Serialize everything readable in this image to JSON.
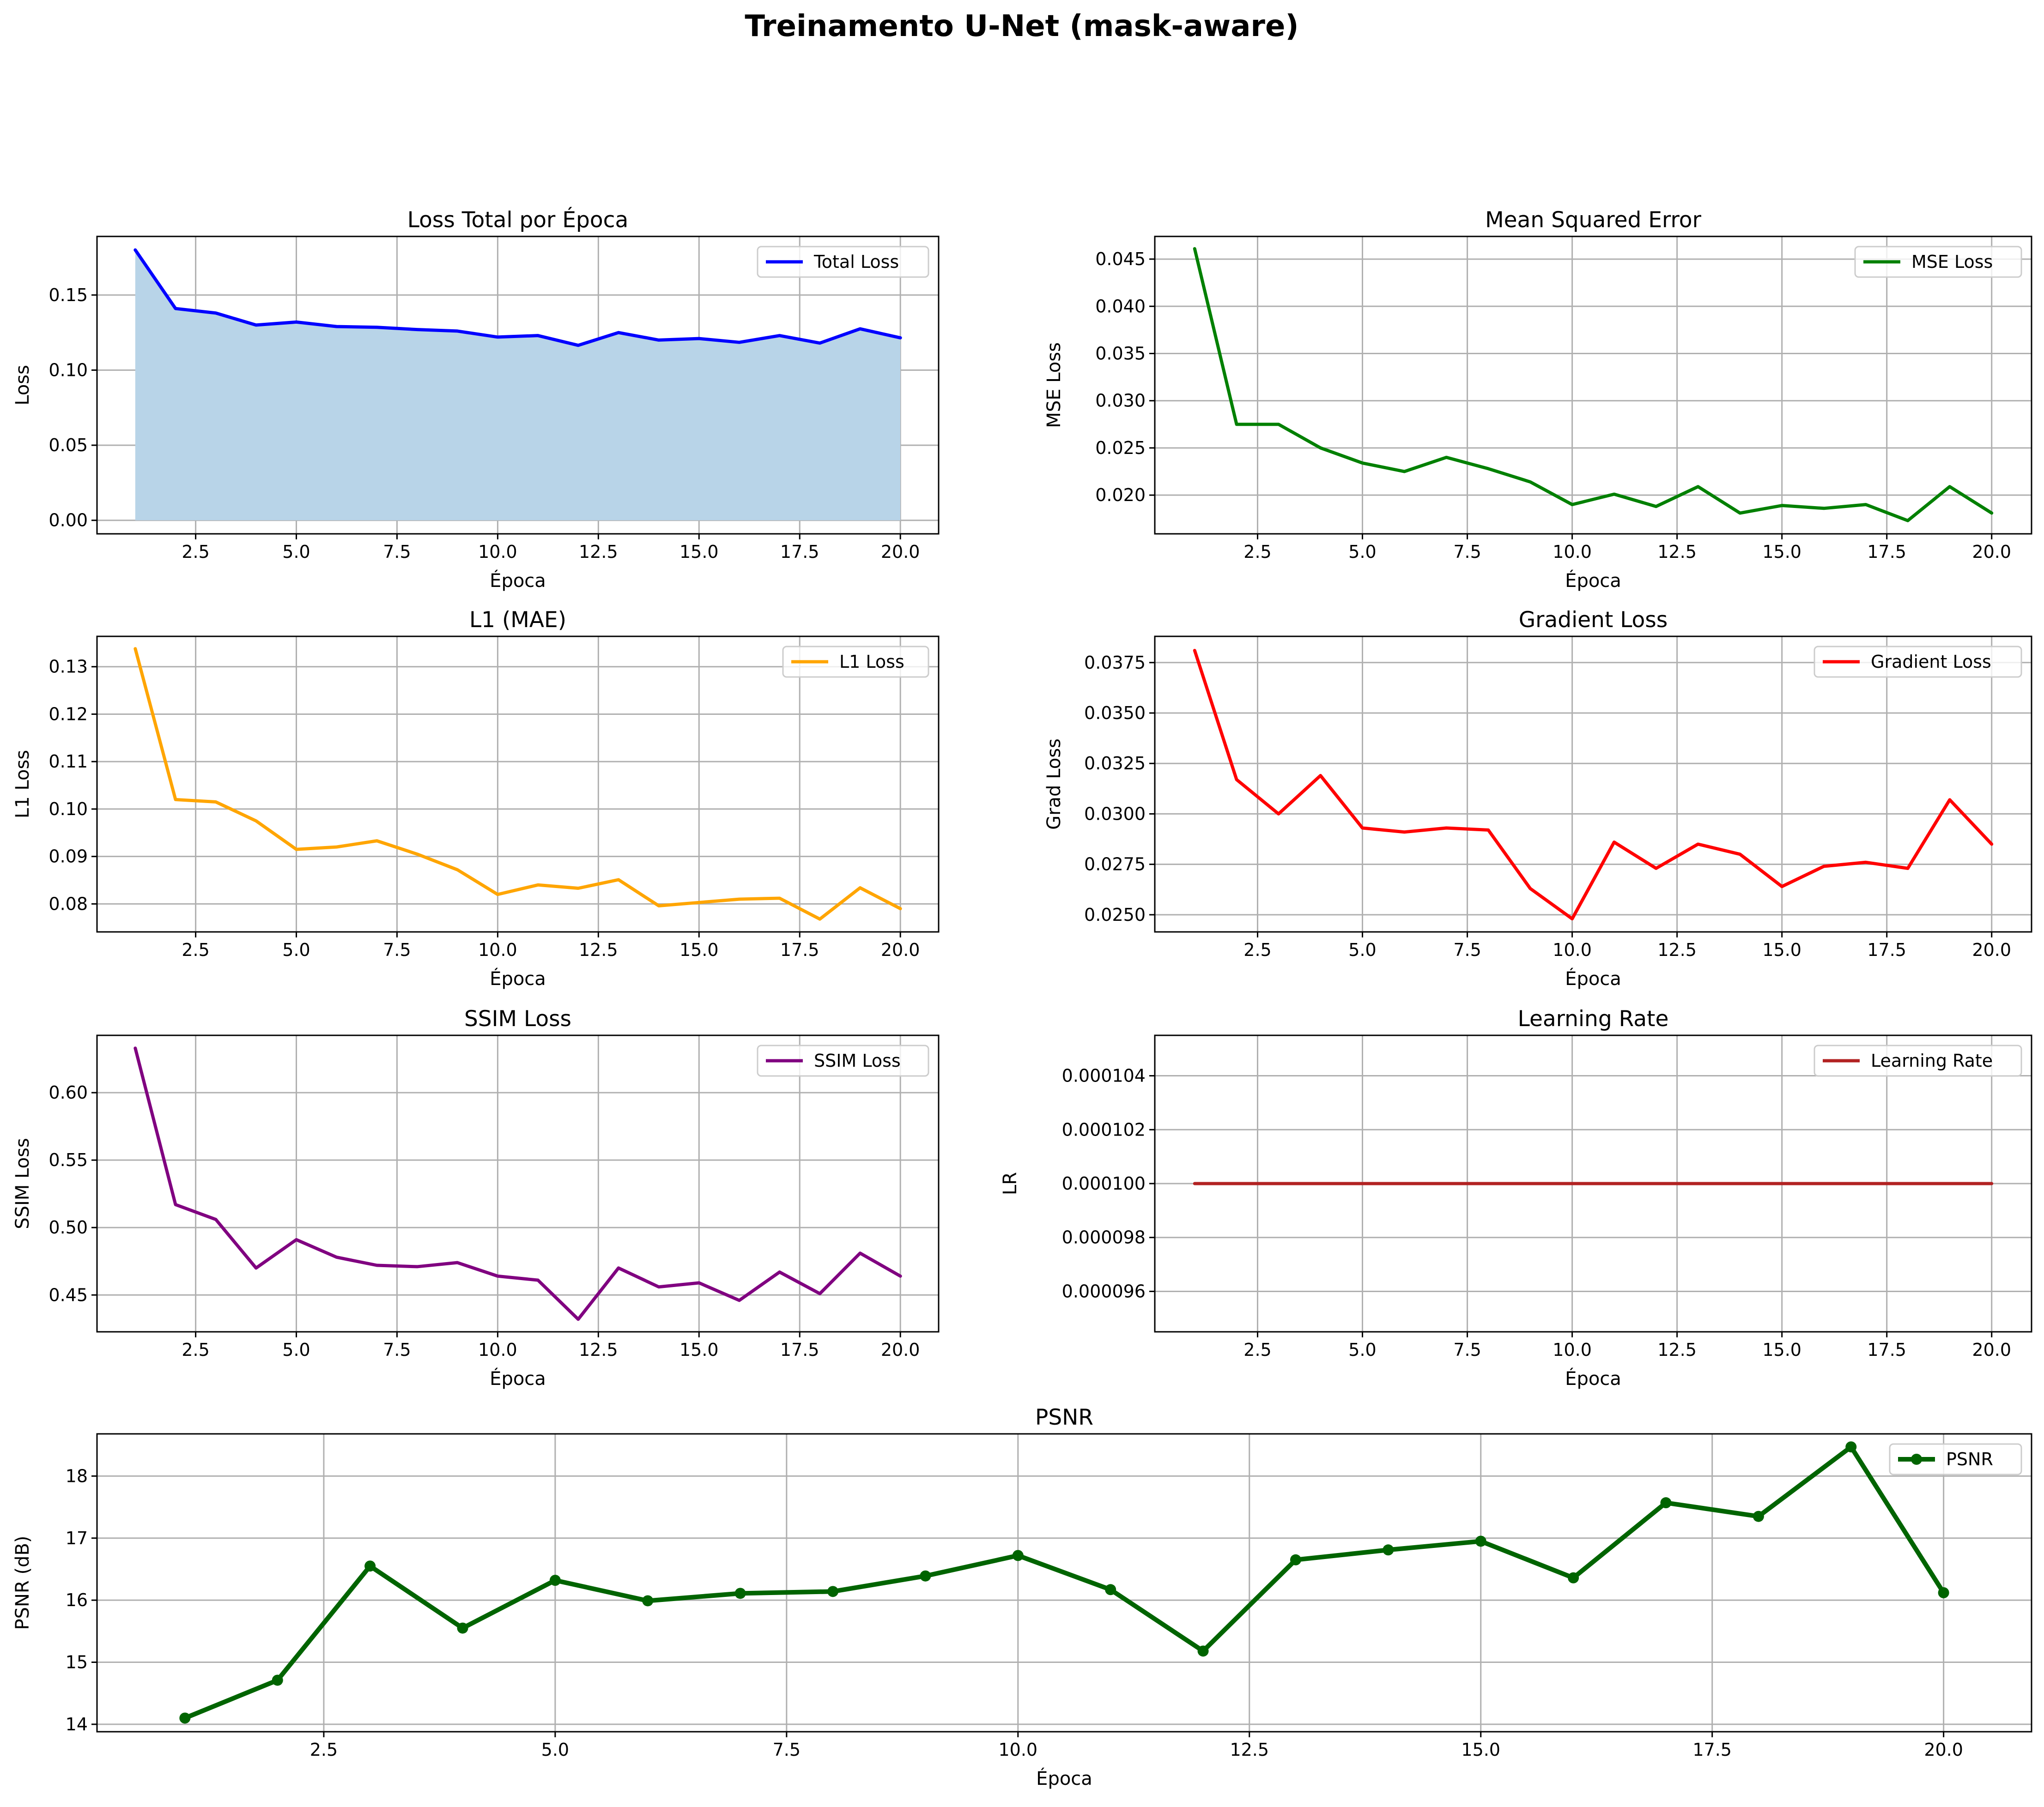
{
  "figure": {
    "suptitle": "Treinamento U-Net (mask-aware)"
  },
  "chart_data": [
    {
      "id": "total",
      "type": "area",
      "title": "Loss Total por Época",
      "xlabel": "Época",
      "ylabel": "Loss",
      "xlim": [
        0.05,
        20.95
      ],
      "ylim": [
        -0.009,
        0.189
      ],
      "xticks": [
        2.5,
        5.0,
        7.5,
        10.0,
        12.5,
        15.0,
        17.5,
        20.0
      ],
      "yticks": [
        0.0,
        0.05,
        0.1,
        0.15
      ],
      "ydec": 2,
      "grid": true,
      "fill_color": "#b8d4e8",
      "legend_loc": "upper right",
      "x": [
        1,
        2,
        3,
        4,
        5,
        6,
        7,
        8,
        9,
        10,
        11,
        12,
        13,
        14,
        15,
        16,
        17,
        18,
        19,
        20
      ],
      "series": [
        {
          "name": "Total Loss",
          "color": "#0000ff",
          "width": 7,
          "values": [
            0.18,
            0.141,
            0.138,
            0.13,
            0.132,
            0.129,
            0.1285,
            0.127,
            0.126,
            0.122,
            0.123,
            0.1165,
            0.125,
            0.12,
            0.121,
            0.1185,
            0.123,
            0.118,
            0.1275,
            0.1215
          ]
        }
      ]
    },
    {
      "id": "mse",
      "type": "line",
      "title": "Mean Squared Error",
      "xlabel": "Época",
      "ylabel": "MSE Loss",
      "xlim": [
        0.05,
        20.95
      ],
      "ylim": [
        0.0159,
        0.0474
      ],
      "xticks": [
        2.5,
        5.0,
        7.5,
        10.0,
        12.5,
        15.0,
        17.5,
        20.0
      ],
      "yticks": [
        0.02,
        0.025,
        0.03,
        0.035,
        0.04,
        0.045
      ],
      "ydec": 3,
      "grid": true,
      "legend_loc": "upper right",
      "x": [
        1,
        2,
        3,
        4,
        5,
        6,
        7,
        8,
        9,
        10,
        11,
        12,
        13,
        14,
        15,
        16,
        17,
        18,
        19,
        20
      ],
      "series": [
        {
          "name": "MSE Loss",
          "color": "#008000",
          "width": 7,
          "values": [
            0.0461,
            0.0275,
            0.0275,
            0.025,
            0.0234,
            0.0225,
            0.024,
            0.0228,
            0.0214,
            0.019,
            0.0201,
            0.0188,
            0.0209,
            0.0181,
            0.0189,
            0.0186,
            0.019,
            0.0173,
            0.0209,
            0.0181
          ]
        }
      ]
    },
    {
      "id": "l1",
      "type": "line",
      "title": "L1 (MAE)",
      "xlabel": "Época",
      "ylabel": "L1 Loss",
      "xlim": [
        0.05,
        20.95
      ],
      "ylim": [
        0.0741,
        0.1364
      ],
      "xticks": [
        2.5,
        5.0,
        7.5,
        10.0,
        12.5,
        15.0,
        17.5,
        20.0
      ],
      "yticks": [
        0.08,
        0.09,
        0.1,
        0.11,
        0.12,
        0.13
      ],
      "ydec": 2,
      "grid": true,
      "legend_loc": "upper right",
      "x": [
        1,
        2,
        3,
        4,
        5,
        6,
        7,
        8,
        9,
        10,
        11,
        12,
        13,
        14,
        15,
        16,
        17,
        18,
        19,
        20
      ],
      "series": [
        {
          "name": "L1 Loss",
          "color": "#ffa500",
          "width": 7,
          "values": [
            0.1338,
            0.102,
            0.1015,
            0.0975,
            0.0915,
            0.092,
            0.0933,
            0.0905,
            0.0872,
            0.082,
            0.084,
            0.0833,
            0.0851,
            0.0796,
            0.0803,
            0.081,
            0.0812,
            0.0768,
            0.0834,
            0.079
          ]
        }
      ]
    },
    {
      "id": "grad",
      "type": "line",
      "title": "Gradient Loss",
      "xlabel": "Época",
      "ylabel": "Grad Loss",
      "xlim": [
        0.05,
        20.95
      ],
      "ylim": [
        0.02415,
        0.0388
      ],
      "xticks": [
        2.5,
        5.0,
        7.5,
        10.0,
        12.5,
        15.0,
        17.5,
        20.0
      ],
      "yticks": [
        0.025,
        0.0275,
        0.03,
        0.0325,
        0.035,
        0.0375
      ],
      "ydec": 4,
      "grid": true,
      "legend_loc": "upper right",
      "x": [
        1,
        2,
        3,
        4,
        5,
        6,
        7,
        8,
        9,
        10,
        11,
        12,
        13,
        14,
        15,
        16,
        17,
        18,
        19,
        20
      ],
      "series": [
        {
          "name": "Gradient Loss",
          "color": "#ff0000",
          "width": 7,
          "values": [
            0.0381,
            0.0317,
            0.03,
            0.0319,
            0.0293,
            0.0291,
            0.0293,
            0.0292,
            0.0263,
            0.0248,
            0.0286,
            0.0273,
            0.0285,
            0.028,
            0.0264,
            0.0274,
            0.0276,
            0.0273,
            0.0307,
            0.0285
          ]
        }
      ]
    },
    {
      "id": "ssim",
      "type": "line",
      "title": "SSIM Loss",
      "xlabel": "Época",
      "ylabel": "SSIM Loss",
      "xlim": [
        0.05,
        20.95
      ],
      "ylim": [
        0.4227,
        0.6425
      ],
      "xticks": [
        2.5,
        5.0,
        7.5,
        10.0,
        12.5,
        15.0,
        17.5,
        20.0
      ],
      "yticks": [
        0.45,
        0.5,
        0.55,
        0.6
      ],
      "ydec": 2,
      "grid": true,
      "legend_loc": "upper right",
      "x": [
        1,
        2,
        3,
        4,
        5,
        6,
        7,
        8,
        9,
        10,
        11,
        12,
        13,
        14,
        15,
        16,
        17,
        18,
        19,
        20
      ],
      "series": [
        {
          "name": "SSIM Loss",
          "color": "#800080",
          "width": 7,
          "values": [
            0.633,
            0.517,
            0.506,
            0.47,
            0.491,
            0.478,
            0.472,
            0.471,
            0.474,
            0.464,
            0.461,
            0.432,
            0.47,
            0.456,
            0.459,
            0.446,
            0.467,
            0.451,
            0.481,
            0.464
          ]
        }
      ]
    },
    {
      "id": "lr",
      "type": "line",
      "title": "Learning Rate",
      "xlabel": "Época",
      "ylabel": "LR",
      "xlim": [
        0.05,
        20.95
      ],
      "ylim": [
        9.45e-05,
        0.0001055
      ],
      "xticks": [
        2.5,
        5.0,
        7.5,
        10.0,
        12.5,
        15.0,
        17.5,
        20.0
      ],
      "yticks": [
        9.6e-05,
        9.8e-05,
        0.0001,
        0.000102,
        0.000104
      ],
      "ydec": 6,
      "grid": true,
      "legend_loc": "upper right",
      "x": [
        1,
        2,
        3,
        4,
        5,
        6,
        7,
        8,
        9,
        10,
        11,
        12,
        13,
        14,
        15,
        16,
        17,
        18,
        19,
        20
      ],
      "series": [
        {
          "name": "Learning Rate",
          "color": "#b22222",
          "width": 7,
          "values": [
            0.0001,
            0.0001,
            0.0001,
            0.0001,
            0.0001,
            0.0001,
            0.0001,
            0.0001,
            0.0001,
            0.0001,
            0.0001,
            0.0001,
            0.0001,
            0.0001,
            0.0001,
            0.0001,
            0.0001,
            0.0001,
            0.0001,
            0.0001
          ]
        }
      ]
    },
    {
      "id": "psnr",
      "type": "line",
      "title": "PSNR",
      "xlabel": "Época",
      "ylabel": "PSNR (dB)",
      "xlim": [
        0.05,
        20.95
      ],
      "ylim": [
        13.88,
        18.68
      ],
      "xticks": [
        2.5,
        5.0,
        7.5,
        10.0,
        12.5,
        15.0,
        17.5,
        20.0
      ],
      "yticks": [
        14,
        15,
        16,
        17,
        18
      ],
      "ydec": 0,
      "grid": true,
      "legend_loc": "upper right",
      "x": [
        1,
        2,
        3,
        4,
        5,
        6,
        7,
        8,
        9,
        10,
        11,
        12,
        13,
        14,
        15,
        16,
        17,
        18,
        19,
        20
      ],
      "series": [
        {
          "name": "PSNR",
          "color": "#006400",
          "width": 10,
          "markers": true,
          "values": [
            14.1,
            14.71,
            16.55,
            15.55,
            16.32,
            15.99,
            16.11,
            16.14,
            16.39,
            16.72,
            16.17,
            15.18,
            16.65,
            16.81,
            16.95,
            16.36,
            17.57,
            17.35,
            18.47,
            16.12
          ]
        }
      ]
    }
  ]
}
